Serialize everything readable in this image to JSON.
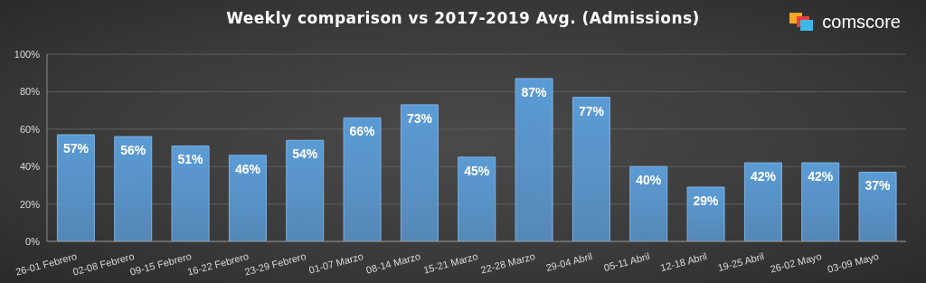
{
  "chart_data": {
    "type": "bar",
    "title": "Weekly comparison vs 2017-2019 Avg. (Admissions)",
    "source": "comscore",
    "categories": [
      "26-01 Febrero",
      "02-08 Febrero",
      "09-15 Febrero",
      "16-22 Febrero",
      "23-29 Febrero",
      "01-07 Marzo",
      "08-14 Marzo",
      "15-21 Marzo",
      "22-28 Marzo",
      "29-04 Abril",
      "05-11 Abril",
      "12-18 Abril",
      "19-25 Abril",
      "26-02 Mayo",
      "03-09 Mayo"
    ],
    "values": [
      57,
      56,
      51,
      46,
      54,
      66,
      73,
      45,
      87,
      77,
      40,
      29,
      42,
      42,
      37
    ],
    "value_labels": [
      "57%",
      "56%",
      "51%",
      "46%",
      "54%",
      "66%",
      "73%",
      "45%",
      "87%",
      "77%",
      "40%",
      "29%",
      "42%",
      "42%",
      "37%"
    ],
    "color": "#5b9bd5",
    "ylim": [
      0,
      100
    ],
    "yticks": [
      {
        "value": 0,
        "label": "0%"
      },
      {
        "value": 20,
        "label": "20%"
      },
      {
        "value": 40,
        "label": "40%"
      },
      {
        "value": 60,
        "label": "60%"
      },
      {
        "value": 80,
        "label": "80%"
      },
      {
        "value": 100,
        "label": "100%"
      }
    ],
    "grid": true,
    "data_labels": true
  }
}
